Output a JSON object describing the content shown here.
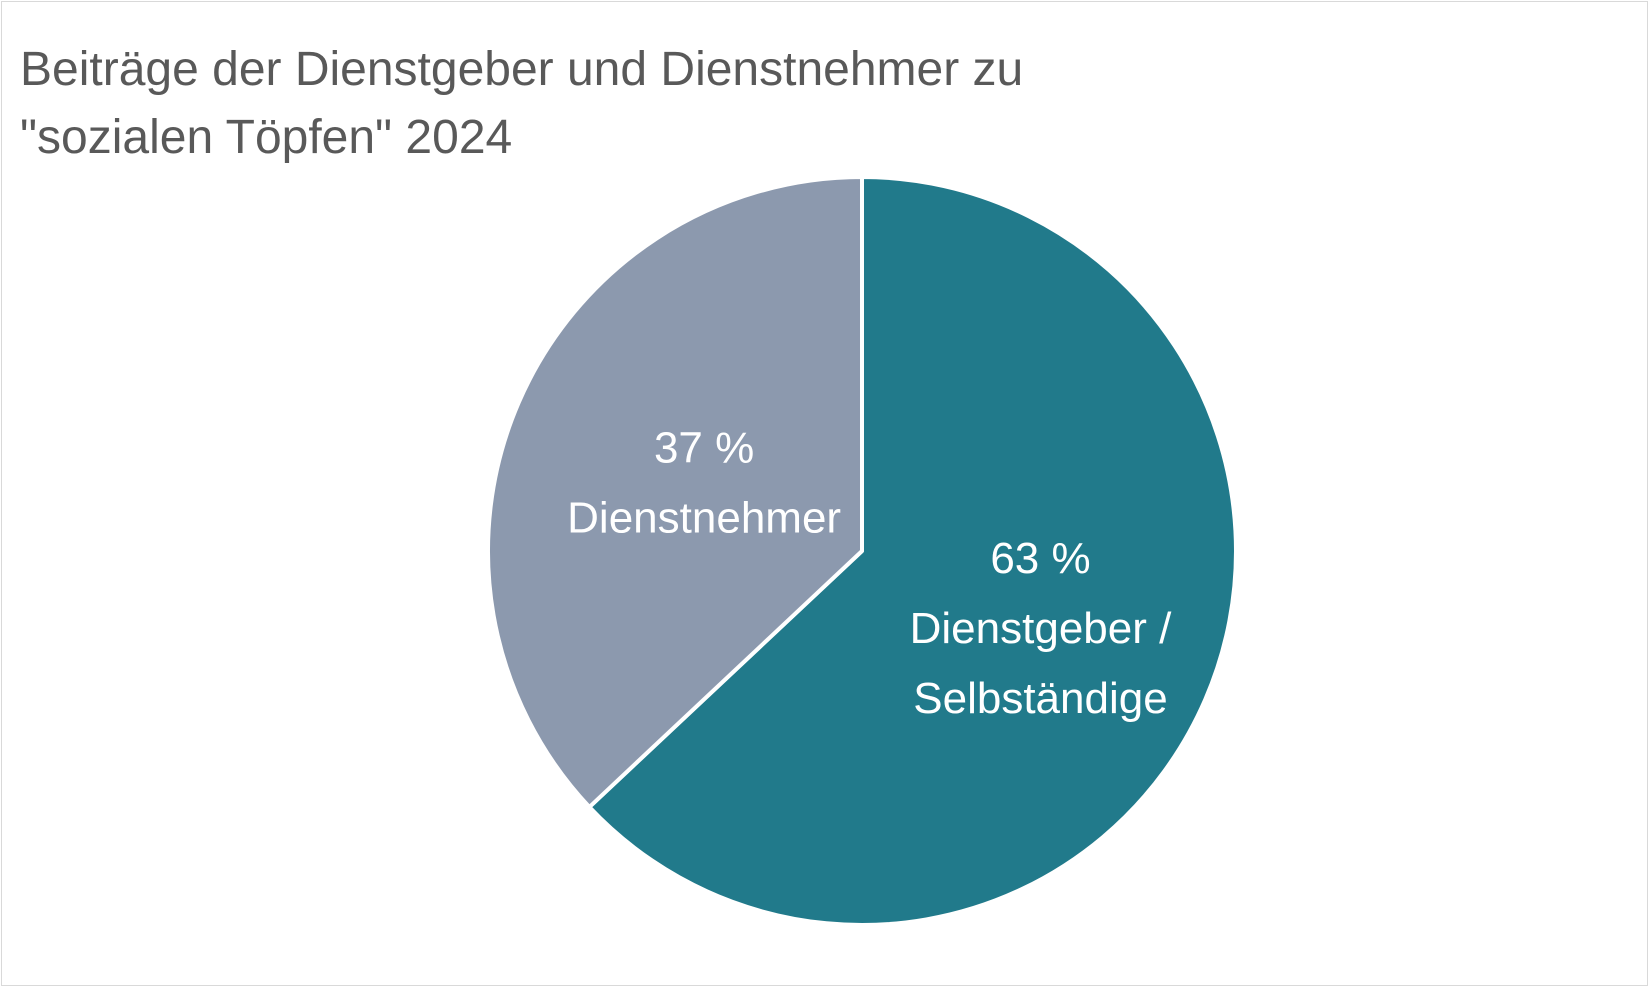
{
  "chart_data": {
    "type": "pie",
    "title_lines": [
      "Beiträge der Dienstgeber und Dienstnehmer zu",
      "\"sozialen Töpfen\" 2024"
    ],
    "slices": [
      {
        "value": 63,
        "label_lines": [
          "63 %",
          "Dienstgeber /",
          "Selbständige"
        ],
        "color": "#217a8b"
      },
      {
        "value": 37,
        "label_lines": [
          "37 %",
          "Dienstnehmer"
        ],
        "color": "#8c99ae"
      }
    ],
    "start": "12 o'clock",
    "direction": "clockwise",
    "slice_separator_color": "#ffffff",
    "legend": "none"
  }
}
